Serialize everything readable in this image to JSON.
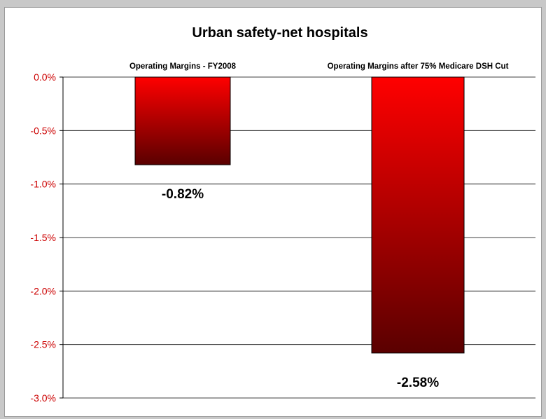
{
  "chart_data": {
    "type": "bar",
    "title": "Urban safety-net hospitals",
    "categories": [
      "Operating Margins - FY2008",
      "Operating Margins after 75% Medicare DSH Cut"
    ],
    "values": [
      -0.82,
      -2.58
    ],
    "data_labels": [
      "-0.82%",
      "-2.58%"
    ],
    "ylim": [
      -3.0,
      0.0
    ],
    "yticks": [
      0.0,
      -0.5,
      -1.0,
      -1.5,
      -2.0,
      -2.5,
      -3.0
    ],
    "ytick_labels": [
      "0.0%",
      "-0.5%",
      "-1.0%",
      "-1.5%",
      "-2.0%",
      "-2.5%",
      "-3.0%"
    ],
    "xlabel": "",
    "ylabel": "",
    "grid": true,
    "colors": {
      "bar_top": "#ff0000",
      "bar_bottom": "#5a0000",
      "tick_text": "#cc0000",
      "grid": "#000000",
      "frame_bg": "#c8c8c8"
    }
  }
}
